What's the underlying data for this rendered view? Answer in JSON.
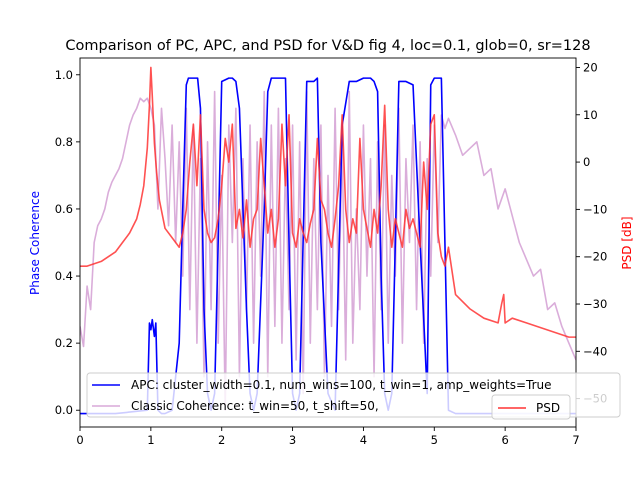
{
  "chart_data": {
    "type": "line",
    "title": "Comparison of PC, APC, and PSD for V&D fig 4, loc=0.1, glob=0, sr=128",
    "xlabel": "",
    "ylabel_left": "Phase Coherence",
    "ylabel_right": "PSD [dB]",
    "xlim": [
      0,
      7
    ],
    "ylim_left": [
      -0.05,
      1.05
    ],
    "ylim_right": [
      -56,
      22
    ],
    "x_ticks": [
      "0",
      "1",
      "2",
      "3",
      "4",
      "5",
      "6",
      "7"
    ],
    "y_left_ticks": [
      "0.0",
      "0.2",
      "0.4",
      "0.6",
      "0.8",
      "1.0"
    ],
    "y_right_ticks": [
      "20",
      "10",
      "0",
      "−10",
      "−20",
      "−30",
      "−40",
      "−50"
    ],
    "grid": false,
    "legend_left_placement": "lower-left",
    "legend_right_placement": "lower-right",
    "colors": {
      "apc": "#0000ff",
      "classic": "#d8a9d8",
      "psd": "#ff3333",
      "left_axis_label": "#0000ff",
      "right_axis_label": "#ff0000"
    },
    "series": [
      {
        "name": "APC: cluster_width=0.1, num_wins=100, t_win=1, amp_weights=True",
        "axis": "left",
        "x": [
          0,
          0.5,
          0.95,
          0.98,
          1.0,
          1.02,
          1.05,
          1.07,
          1.1,
          1.15,
          1.2,
          1.3,
          1.4,
          1.45,
          1.5,
          1.53,
          1.6,
          1.66,
          1.7,
          1.75,
          1.8,
          1.85,
          1.9,
          1.95,
          2.0,
          2.1,
          2.15,
          2.2,
          2.25,
          2.35,
          2.4,
          2.45,
          2.5,
          2.6,
          2.65,
          2.7,
          2.75,
          2.8,
          2.9,
          2.95,
          3.0,
          3.05,
          3.1,
          3.2,
          3.25,
          3.3,
          3.35,
          3.4,
          3.5,
          3.6,
          3.7,
          3.8,
          3.9,
          4.0,
          4.1,
          4.15,
          4.2,
          4.25,
          4.3,
          4.35,
          4.4,
          4.45,
          4.5,
          4.6,
          4.7,
          4.8,
          4.9,
          4.95,
          5.0,
          5.1,
          5.15,
          5.2,
          5.3,
          7.0
        ],
        "values": [
          -0.01,
          -0.01,
          0.0,
          0.26,
          0.24,
          0.27,
          0.22,
          0.26,
          0.0,
          -0.01,
          -0.01,
          0.0,
          0.2,
          0.6,
          0.97,
          0.99,
          0.99,
          0.99,
          0.9,
          0.3,
          0.05,
          0.0,
          0.05,
          0.5,
          0.98,
          0.99,
          0.99,
          0.98,
          0.9,
          0.3,
          0.05,
          0.0,
          0.05,
          0.6,
          0.95,
          0.99,
          0.99,
          0.99,
          0.99,
          0.5,
          0.05,
          0.0,
          0.05,
          0.98,
          0.98,
          0.98,
          0.99,
          0.5,
          0.05,
          0.0,
          0.85,
          0.98,
          0.98,
          0.99,
          0.99,
          0.98,
          0.95,
          0.4,
          0.05,
          0.0,
          0.05,
          0.5,
          0.98,
          0.98,
          0.97,
          0.5,
          0.05,
          0.97,
          0.99,
          0.99,
          0.5,
          0.0,
          -0.01,
          -0.01
        ]
      },
      {
        "name": "Classic Coherence: t_win=50, t_shift=50,",
        "axis": "left",
        "x": [
          0,
          0.05,
          0.1,
          0.15,
          0.2,
          0.25,
          0.3,
          0.35,
          0.4,
          0.45,
          0.5,
          0.55,
          0.6,
          0.65,
          0.7,
          0.75,
          0.8,
          0.85,
          0.9,
          0.95,
          1.0,
          1.05,
          1.1,
          1.15,
          1.2,
          1.25,
          1.3,
          1.35,
          1.4,
          1.45,
          1.5,
          1.55,
          1.6,
          1.65,
          1.7,
          1.75,
          1.8,
          1.85,
          1.9,
          1.95,
          2.0,
          2.05,
          2.1,
          2.15,
          2.2,
          2.25,
          2.3,
          2.35,
          2.4,
          2.45,
          2.5,
          2.55,
          2.6,
          2.65,
          2.7,
          2.75,
          2.8,
          2.85,
          2.9,
          2.95,
          3.0,
          3.05,
          3.1,
          3.15,
          3.2,
          3.25,
          3.3,
          3.35,
          3.4,
          3.45,
          3.5,
          3.55,
          3.6,
          3.65,
          3.7,
          3.75,
          3.8,
          3.85,
          3.9,
          3.95,
          4.0,
          4.05,
          4.1,
          4.15,
          4.2,
          4.25,
          4.3,
          4.35,
          4.4,
          4.45,
          4.5,
          4.55,
          4.6,
          4.65,
          4.7,
          4.75,
          4.8,
          4.85,
          4.9,
          4.95,
          5.0,
          5.05,
          5.1,
          5.15,
          5.2,
          5.3,
          5.4,
          5.5,
          5.6,
          5.7,
          5.8,
          5.9,
          6.0,
          6.1,
          6.2,
          6.3,
          6.4,
          6.5,
          6.6,
          6.7,
          6.8,
          6.9,
          7.0
        ],
        "values": [
          0.25,
          0.19,
          0.37,
          0.3,
          0.5,
          0.55,
          0.57,
          0.6,
          0.65,
          0.68,
          0.7,
          0.72,
          0.75,
          0.8,
          0.85,
          0.88,
          0.9,
          0.93,
          0.92,
          0.93,
          0.9,
          0.85,
          0.6,
          0.9,
          0.75,
          0.55,
          0.85,
          0.5,
          0.8,
          0.4,
          0.9,
          0.3,
          0.85,
          0.2,
          0.75,
          0.1,
          0.8,
          0.3,
          0.95,
          0.2,
          0.7,
          0.0,
          0.85,
          0.5,
          0.9,
          0.1,
          0.75,
          0.3,
          0.85,
          0.2,
          0.8,
          0.4,
          0.95,
          0.1,
          0.85,
          0.25,
          0.9,
          0.2,
          0.75,
          0.3,
          0.85,
          0.15,
          0.8,
          0.05,
          0.95,
          0.2,
          0.75,
          0.3,
          0.85,
          0.1,
          0.7,
          0.25,
          0.9,
          0.3,
          0.8,
          0.15,
          0.95,
          0.2,
          0.6,
          0.3,
          0.85,
          0.4,
          0.75,
          0.1,
          0.8,
          0.3,
          0.85,
          0.2,
          0.7,
          0.4,
          0.9,
          0.2,
          0.75,
          0.5,
          0.85,
          0.3,
          0.8,
          0.2,
          0.75,
          0.4,
          0.85,
          0.5,
          0.88,
          0.84,
          0.87,
          0.82,
          0.76,
          0.78,
          0.8,
          0.7,
          0.72,
          0.6,
          0.66,
          0.58,
          0.5,
          0.45,
          0.4,
          0.42,
          0.3,
          0.32,
          0.25,
          0.2,
          0.15
        ]
      },
      {
        "name": "PSD",
        "axis": "right",
        "x": [
          0,
          0.1,
          0.2,
          0.3,
          0.4,
          0.5,
          0.6,
          0.7,
          0.8,
          0.85,
          0.9,
          0.95,
          0.98,
          1.0,
          1.02,
          1.05,
          1.08,
          1.12,
          1.2,
          1.3,
          1.4,
          1.45,
          1.5,
          1.55,
          1.6,
          1.65,
          1.7,
          1.75,
          1.8,
          1.85,
          1.9,
          1.95,
          2.0,
          2.05,
          2.1,
          2.15,
          2.2,
          2.25,
          2.3,
          2.35,
          2.4,
          2.45,
          2.5,
          2.55,
          2.6,
          2.65,
          2.7,
          2.75,
          2.8,
          2.85,
          2.9,
          2.95,
          3.0,
          3.05,
          3.1,
          3.15,
          3.2,
          3.25,
          3.3,
          3.35,
          3.4,
          3.45,
          3.5,
          3.55,
          3.6,
          3.65,
          3.7,
          3.75,
          3.8,
          3.85,
          3.9,
          3.95,
          4.0,
          4.05,
          4.1,
          4.15,
          4.2,
          4.25,
          4.3,
          4.35,
          4.4,
          4.45,
          4.5,
          4.55,
          4.6,
          4.65,
          4.7,
          4.75,
          4.8,
          4.85,
          4.9,
          4.95,
          5.0,
          5.05,
          5.1,
          5.15,
          5.2,
          5.3,
          5.5,
          5.7,
          5.9,
          5.95,
          5.98,
          6.0,
          6.1,
          6.3,
          6.5,
          6.7,
          6.9,
          7.0
        ],
        "values": [
          -22,
          -22,
          -21.5,
          -21,
          -20,
          -19,
          -17,
          -15,
          -12,
          -9,
          -5,
          3,
          12,
          20,
          14,
          4,
          -2,
          -8,
          -14,
          -16,
          -18,
          -15,
          -10,
          0,
          8,
          -5,
          10,
          -10,
          -15,
          -17,
          -16,
          -12,
          -5,
          5,
          0,
          8,
          -14,
          -10,
          -16,
          -8,
          -18,
          -12,
          -10,
          5,
          -5,
          -15,
          -10,
          -18,
          -12,
          8,
          -5,
          10,
          -15,
          -18,
          -12,
          -15,
          -17,
          -13,
          -10,
          5,
          -8,
          -10,
          -15,
          -18,
          -12,
          -5,
          10,
          -10,
          -17,
          -12,
          -15,
          5,
          -10,
          -14,
          -18,
          -10,
          -15,
          -5,
          12,
          -10,
          -18,
          -12,
          -15,
          -18,
          -10,
          -14,
          -12,
          -15,
          -18,
          0,
          -10,
          8,
          10,
          -15,
          -20,
          -22,
          -18,
          -28,
          -31,
          -33,
          -34,
          -30,
          -28,
          -34,
          -33,
          -34,
          -35,
          -36,
          -37,
          -37
        ]
      }
    ]
  }
}
